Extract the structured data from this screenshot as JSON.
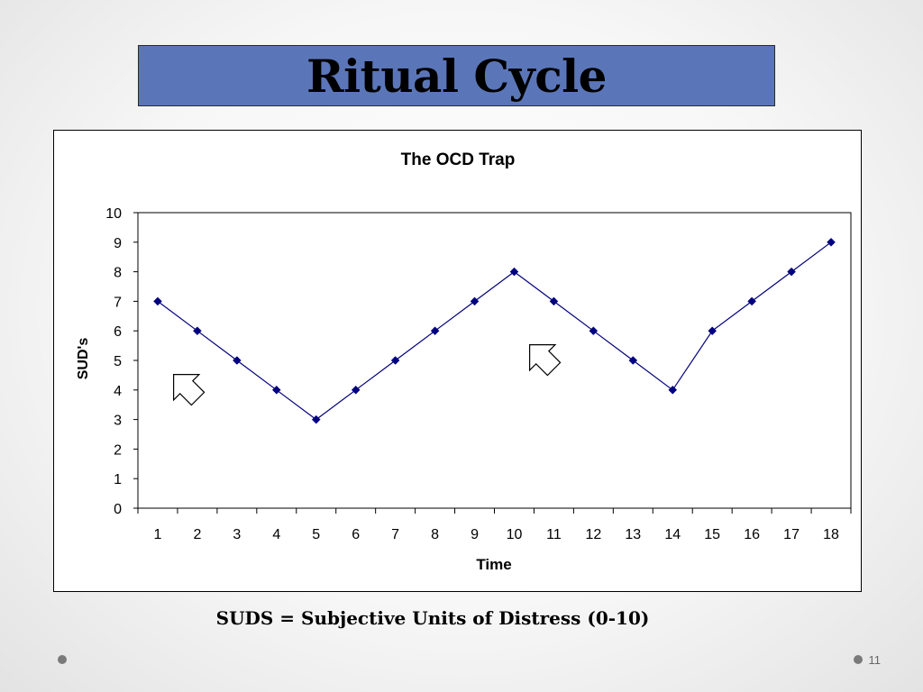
{
  "slide": {
    "title": "Ritual Cycle",
    "caption": "SUDS = Subjective Units of Distress (0-10)",
    "page_number": "11"
  },
  "colors": {
    "title_background": "#5b76b8",
    "series_line": "#00007a",
    "series_marker": "#000080"
  },
  "chart_data": {
    "type": "line",
    "title": "The OCD Trap",
    "xlabel": "Time",
    "ylabel": "SUD's",
    "categories": [
      "1",
      "2",
      "3",
      "4",
      "5",
      "6",
      "7",
      "8",
      "9",
      "10",
      "11",
      "12",
      "13",
      "14",
      "15",
      "16",
      "17",
      "18"
    ],
    "series": [
      {
        "values": [
          7,
          6,
          5,
          4,
          3,
          4,
          5,
          6,
          7,
          8,
          7,
          6,
          5,
          4,
          6,
          7,
          8,
          9
        ]
      }
    ],
    "ylim": [
      0,
      10
    ],
    "yticks": [
      0,
      1,
      2,
      3,
      4,
      5,
      6,
      7,
      8,
      9,
      10
    ],
    "grid": false,
    "legend": "none",
    "marker": "diamond",
    "annotations": [
      {
        "type": "block-arrow",
        "icon": "up-right-arrow-icon"
      },
      {
        "type": "block-arrow",
        "icon": "up-right-arrow-icon"
      }
    ]
  }
}
